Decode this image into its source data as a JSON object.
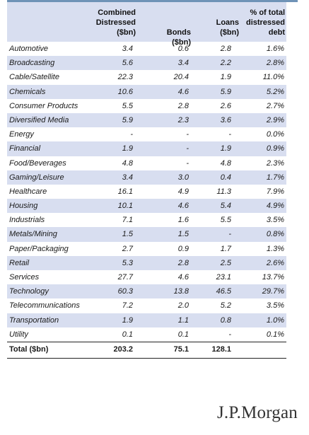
{
  "header": {
    "combined": "Combined\nDistressed\n($bn)",
    "combined_l1": "Combined",
    "combined_l2": "Distressed",
    "combined_l3": "($bn)",
    "bonds": "Bonds ($bn)",
    "loans_l1": "Loans",
    "loans_l2": "($bn)",
    "pct_l1": "% of total",
    "pct_l2": "distressed",
    "pct_l3": "debt"
  },
  "rows": [
    {
      "sector": "Automotive",
      "combined": "3.4",
      "bonds": "0.6",
      "loans": "2.8",
      "pct": "1.6%"
    },
    {
      "sector": "Broadcasting",
      "combined": "5.6",
      "bonds": "3.4",
      "loans": "2.2",
      "pct": "2.8%"
    },
    {
      "sector": "Cable/Satellite",
      "combined": "22.3",
      "bonds": "20.4",
      "loans": "1.9",
      "pct": "11.0%"
    },
    {
      "sector": "Chemicals",
      "combined": "10.6",
      "bonds": "4.6",
      "loans": "5.9",
      "pct": "5.2%"
    },
    {
      "sector": "Consumer Products",
      "combined": "5.5",
      "bonds": "2.8",
      "loans": "2.6",
      "pct": "2.7%"
    },
    {
      "sector": "Diversified Media",
      "combined": "5.9",
      "bonds": "2.3",
      "loans": "3.6",
      "pct": "2.9%"
    },
    {
      "sector": "Energy",
      "combined": "-",
      "bonds": "-",
      "loans": "-",
      "pct": "0.0%"
    },
    {
      "sector": "Financial",
      "combined": "1.9",
      "bonds": "-",
      "loans": "1.9",
      "pct": "0.9%"
    },
    {
      "sector": "Food/Beverages",
      "combined": "4.8",
      "bonds": "-",
      "loans": "4.8",
      "pct": "2.3%"
    },
    {
      "sector": "Gaming/Leisure",
      "combined": "3.4",
      "bonds": "3.0",
      "loans": "0.4",
      "pct": "1.7%"
    },
    {
      "sector": "Healthcare",
      "combined": "16.1",
      "bonds": "4.9",
      "loans": "11.3",
      "pct": "7.9%"
    },
    {
      "sector": "Housing",
      "combined": "10.1",
      "bonds": "4.6",
      "loans": "5.4",
      "pct": "4.9%"
    },
    {
      "sector": "Industrials",
      "combined": "7.1",
      "bonds": "1.6",
      "loans": "5.5",
      "pct": "3.5%"
    },
    {
      "sector": "Metals/Mining",
      "combined": "1.5",
      "bonds": "1.5",
      "loans": "-",
      "pct": "0.8%"
    },
    {
      "sector": "Paper/Packaging",
      "combined": "2.7",
      "bonds": "0.9",
      "loans": "1.7",
      "pct": "1.3%"
    },
    {
      "sector": "Retail",
      "combined": "5.3",
      "bonds": "2.8",
      "loans": "2.5",
      "pct": "2.6%"
    },
    {
      "sector": "Services",
      "combined": "27.7",
      "bonds": "4.6",
      "loans": "23.1",
      "pct": "13.7%"
    },
    {
      "sector": "Technology",
      "combined": "60.3",
      "bonds": "13.8",
      "loans": "46.5",
      "pct": "29.7%"
    },
    {
      "sector": "Telecommunications",
      "combined": "7.2",
      "bonds": "2.0",
      "loans": "5.2",
      "pct": "3.5%"
    },
    {
      "sector": "Transportation",
      "combined": "1.9",
      "bonds": "1.1",
      "loans": "0.8",
      "pct": "1.0%"
    },
    {
      "sector": "Utility",
      "combined": "0.1",
      "bonds": "0.1",
      "loans": "-",
      "pct": "0.1%"
    }
  ],
  "total": {
    "label": "Total ($bn)",
    "combined": "203.2",
    "bonds": "75.1",
    "loans": "128.1"
  },
  "logo_text": "J.P.Morgan",
  "colors": {
    "stripe": "#d8def0",
    "topbar": "#6f93b7"
  }
}
